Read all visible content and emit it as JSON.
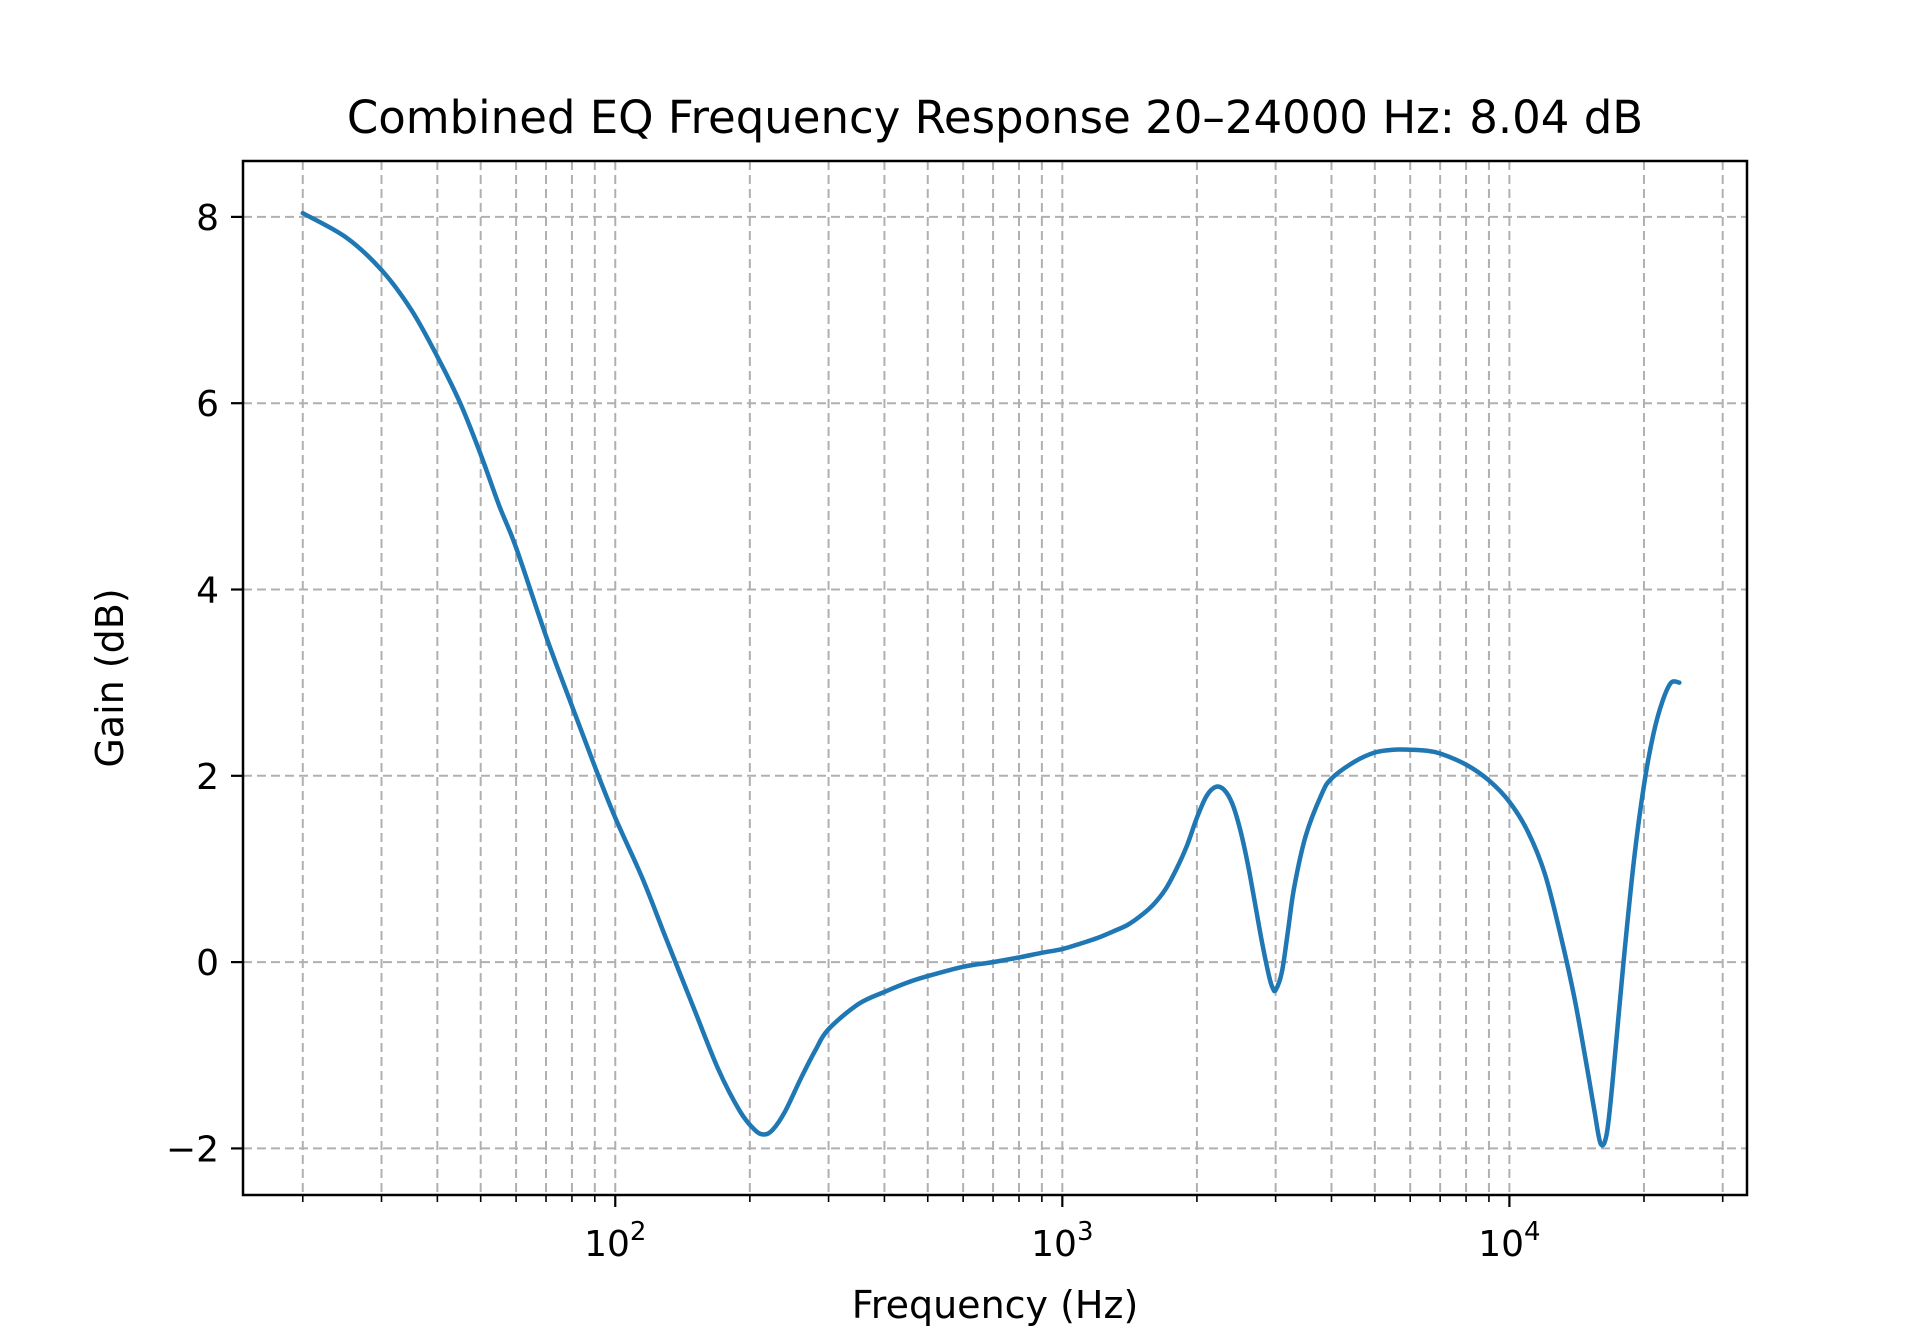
{
  "chart_data": {
    "type": "line",
    "title": "Combined EQ Frequency Response 20–24000 Hz: 8.04 dB",
    "xlabel": "Frequency (Hz)",
    "ylabel": "Gain (dB)",
    "xscale": "log",
    "xlim": [
      14.7,
      34000
    ],
    "ylim": [
      -2.5,
      8.6
    ],
    "grid": true,
    "grid_style": "dashed",
    "legend": "none",
    "line_color": "#1f77b4",
    "x_ticks": [
      {
        "base": "10",
        "exp": "2",
        "value": 100
      },
      {
        "base": "10",
        "exp": "3",
        "value": 1000
      },
      {
        "base": "10",
        "exp": "4",
        "value": 10000
      }
    ],
    "y_ticks": [
      {
        "label": "−2",
        "value": -2
      },
      {
        "label": "0",
        "value": 0
      },
      {
        "label": "2",
        "value": 2
      },
      {
        "label": "4",
        "value": 4
      },
      {
        "label": "6",
        "value": 6
      },
      {
        "label": "8",
        "value": 8
      }
    ],
    "series": [
      {
        "x": [
          20,
          25,
          30,
          35,
          40,
          45,
          50,
          55,
          60,
          70,
          80,
          90,
          100,
          115,
          130,
          150,
          170,
          190,
          205,
          215,
          225,
          240,
          260,
          280,
          300,
          350,
          400,
          450,
          500,
          600,
          700,
          800,
          900,
          1000,
          1100,
          1200,
          1300,
          1400,
          1500,
          1600,
          1700,
          1800,
          1900,
          2000,
          2100,
          2200,
          2300,
          2400,
          2500,
          2600,
          2700,
          2800,
          2900,
          2950,
          3000,
          3100,
          3200,
          3300,
          3500,
          3800,
          4000,
          4500,
          5000,
          5500,
          6000,
          6500,
          7000,
          8000,
          9000,
          10000,
          11000,
          12000,
          13000,
          14000,
          15000,
          15500,
          16000,
          16500,
          17000,
          18000,
          19000,
          20000,
          21000,
          22000,
          23000,
          24000
        ],
        "y": [
          8.04,
          7.78,
          7.43,
          7.0,
          6.5,
          6.0,
          5.45,
          4.9,
          4.45,
          3.5,
          2.75,
          2.1,
          1.55,
          0.9,
          0.25,
          -0.5,
          -1.15,
          -1.6,
          -1.8,
          -1.85,
          -1.8,
          -1.6,
          -1.25,
          -0.95,
          -0.72,
          -0.45,
          -0.32,
          -0.22,
          -0.15,
          -0.05,
          0.0,
          0.05,
          0.1,
          0.14,
          0.2,
          0.26,
          0.33,
          0.4,
          0.5,
          0.62,
          0.78,
          1.0,
          1.25,
          1.55,
          1.78,
          1.88,
          1.85,
          1.7,
          1.42,
          1.05,
          0.62,
          0.2,
          -0.15,
          -0.27,
          -0.3,
          -0.1,
          0.35,
          0.8,
          1.35,
          1.8,
          1.97,
          2.15,
          2.25,
          2.28,
          2.28,
          2.27,
          2.24,
          2.12,
          1.95,
          1.72,
          1.4,
          0.95,
          0.3,
          -0.4,
          -1.2,
          -1.6,
          -1.95,
          -1.85,
          -1.3,
          0.0,
          1.1,
          1.9,
          2.45,
          2.8,
          3.0,
          3.0
        ]
      }
    ]
  }
}
